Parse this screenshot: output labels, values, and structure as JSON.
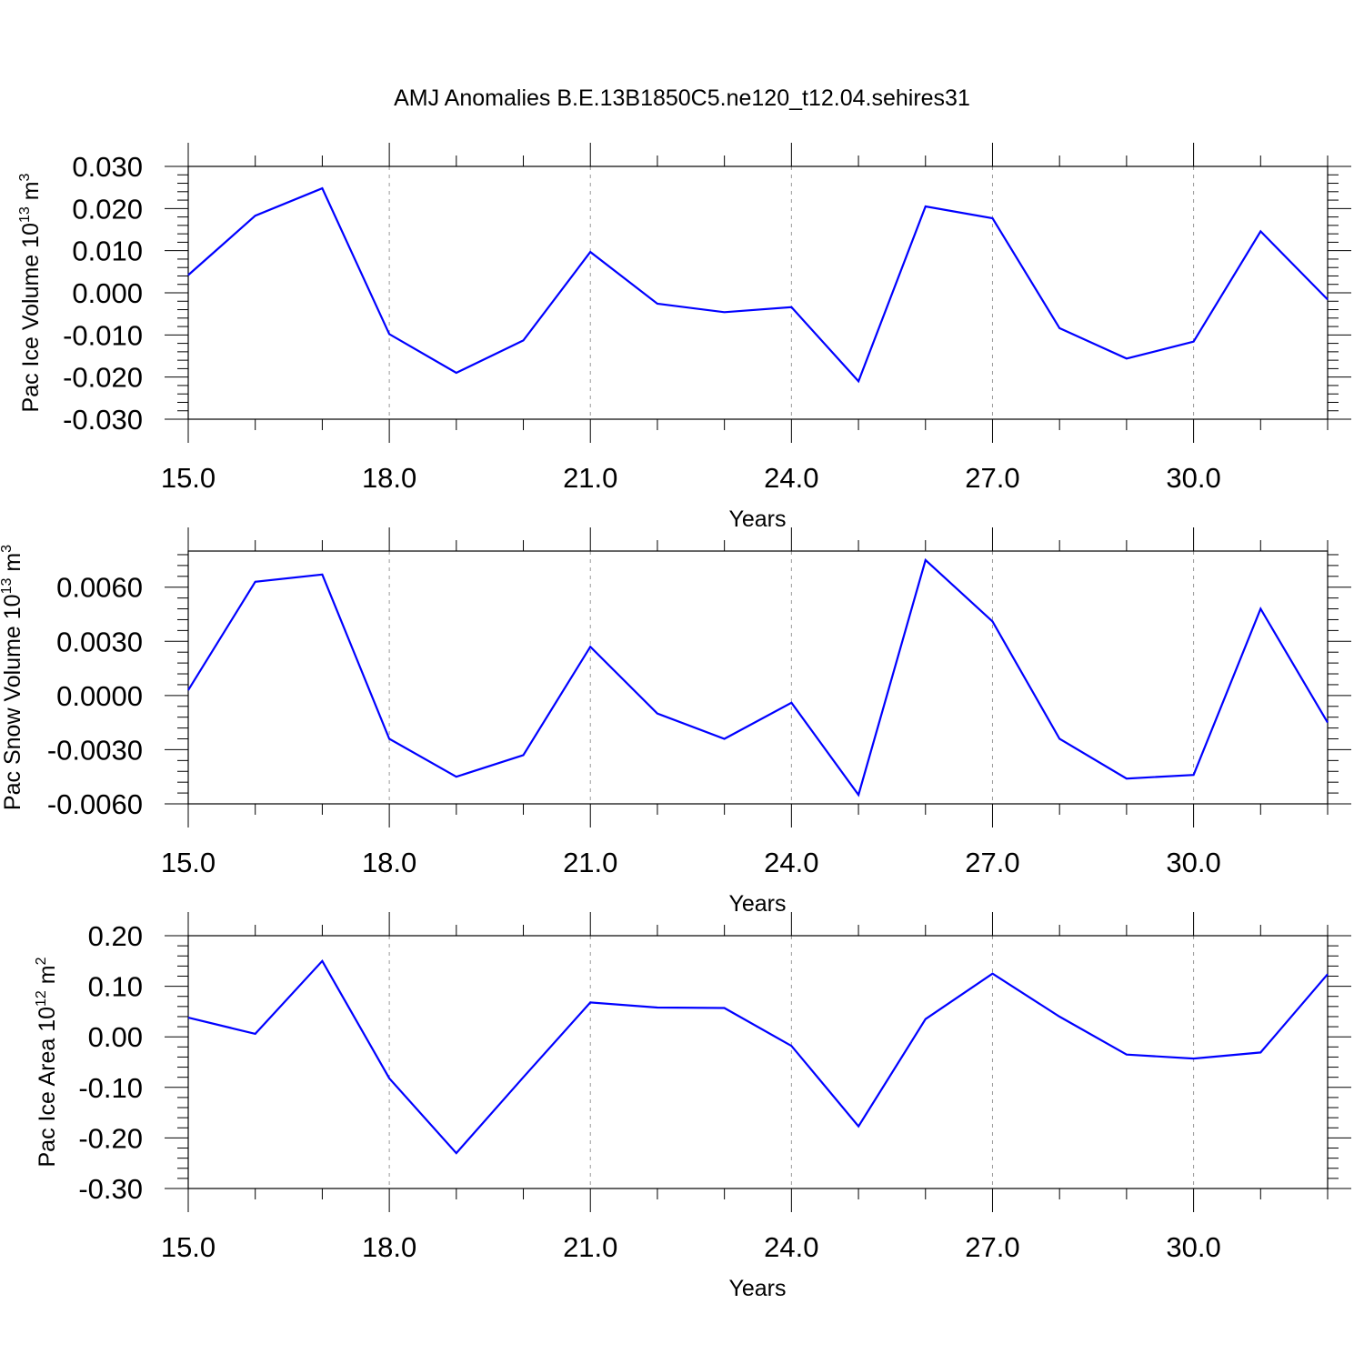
{
  "title": "AMJ Anomalies B.E.13B1850C5.ne120_t12.04.sehires31",
  "colors": {
    "line": "#0000ff",
    "axes": "#000000",
    "grid": "#9a9a9a"
  },
  "chart_data": [
    {
      "type": "line",
      "ylabel": {
        "main": "Pac Ice Volume 10",
        "sup": "13",
        "unit": " m",
        "unit_sup": "3"
      },
      "xlabel": "Years",
      "x_ticks": [
        "15.0",
        "18.0",
        "21.0",
        "24.0",
        "27.0",
        "30.0"
      ],
      "x_tick_values": [
        15,
        18,
        21,
        24,
        27,
        30
      ],
      "xlim": [
        15,
        32
      ],
      "y_ticks": [
        "-0.030",
        "-0.020",
        "-0.010",
        "0.000",
        "0.010",
        "0.020",
        "0.030"
      ],
      "y_tick_values": [
        -0.03,
        -0.02,
        -0.01,
        0.0,
        0.01,
        0.02,
        0.03
      ],
      "ylim": [
        -0.03,
        0.03
      ],
      "grid": "vertical dashed at major x ticks",
      "x": [
        15,
        16,
        17,
        18,
        19,
        20,
        21,
        22,
        23,
        24,
        25,
        26,
        27,
        28,
        29,
        30,
        31,
        32
      ],
      "values": [
        0.0042,
        0.0183,
        0.0248,
        -0.0098,
        -0.019,
        -0.0113,
        0.0097,
        -0.0026,
        -0.0046,
        -0.0034,
        -0.021,
        0.0205,
        0.0177,
        -0.0084,
        -0.0156,
        -0.0116,
        0.0146,
        -0.0016
      ]
    },
    {
      "type": "line",
      "ylabel": {
        "main": "Pac Snow Volume 10",
        "sup": "13",
        "unit": " m",
        "unit_sup": "3"
      },
      "xlabel": "Years",
      "x_ticks": [
        "15.0",
        "18.0",
        "21.0",
        "24.0",
        "27.0",
        "30.0"
      ],
      "x_tick_values": [
        15,
        18,
        21,
        24,
        27,
        30
      ],
      "xlim": [
        15,
        32
      ],
      "y_ticks": [
        "-0.0060",
        "-0.0030",
        "0.0000",
        "0.0030",
        "0.0060"
      ],
      "y_tick_values": [
        -0.006,
        -0.003,
        0.0,
        0.003,
        0.006
      ],
      "ylim": [
        -0.006,
        0.008
      ],
      "grid": "vertical dashed at major x ticks",
      "x": [
        15,
        16,
        17,
        18,
        19,
        20,
        21,
        22,
        23,
        24,
        25,
        26,
        27,
        28,
        29,
        30,
        31,
        32
      ],
      "values": [
        0.0003,
        0.0063,
        0.0067,
        -0.0024,
        -0.0045,
        -0.0033,
        0.0027,
        -0.001,
        -0.0024,
        -0.0004,
        -0.0055,
        0.0075,
        0.0041,
        -0.0024,
        -0.0046,
        -0.0044,
        0.0048,
        -0.0015
      ]
    },
    {
      "type": "line",
      "ylabel": {
        "main": "Pac Ice Area 10",
        "sup": "12",
        "unit": " m",
        "unit_sup": "2"
      },
      "xlabel": "Years",
      "x_ticks": [
        "15.0",
        "18.0",
        "21.0",
        "24.0",
        "27.0",
        "30.0"
      ],
      "x_tick_values": [
        15,
        18,
        21,
        24,
        27,
        30
      ],
      "xlim": [
        15,
        32
      ],
      "y_ticks": [
        "-0.30",
        "-0.20",
        "-0.10",
        "0.00",
        "0.10",
        "0.20"
      ],
      "y_tick_values": [
        -0.3,
        -0.2,
        -0.1,
        0.0,
        0.1,
        0.2
      ],
      "ylim": [
        -0.3,
        0.2
      ],
      "grid": "vertical dashed at major x ticks",
      "x": [
        15,
        16,
        17,
        18,
        19,
        20,
        21,
        22,
        23,
        24,
        25,
        26,
        27,
        28,
        29,
        30,
        31,
        32
      ],
      "values": [
        0.038,
        0.006,
        0.15,
        -0.082,
        -0.23,
        -0.08,
        0.068,
        0.058,
        0.057,
        -0.018,
        -0.177,
        0.035,
        0.125,
        0.04,
        -0.035,
        -0.043,
        -0.031,
        0.124
      ]
    }
  ]
}
